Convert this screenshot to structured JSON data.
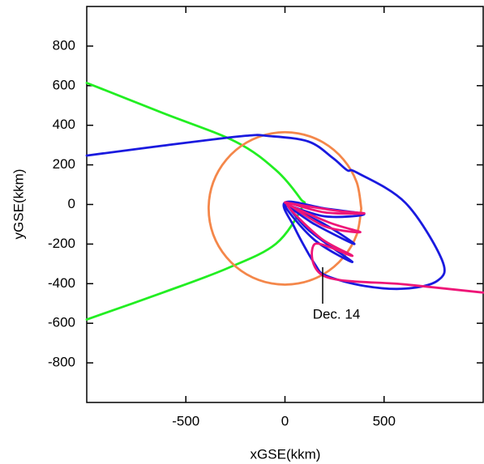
{
  "chart_data": {
    "type": "line",
    "x_label": "xGSE(kkm)",
    "y_label": "yGSE(kkm)",
    "xlim": [
      -1000,
      1000
    ],
    "ylim": [
      -1000,
      1000
    ],
    "xticks": [
      -500,
      0,
      500
    ],
    "yticks": [
      -800,
      -600,
      -400,
      -200,
      0,
      200,
      400,
      600,
      800
    ],
    "series": [
      {
        "color": "#22ee22",
        "x": [
          -1000,
          -616,
          -249,
          -45,
          78,
          88,
          -45,
          -290,
          -616,
          -1000
        ],
        "y": [
          614,
          462,
          317,
          173,
          29,
          -12,
          -198,
          -322,
          -445,
          -581
        ]
      },
      {
        "color": "#f4874a",
        "x": [
          385,
          362,
          295,
          193,
          67,
          -67,
          -193,
          -295,
          -362,
          -385,
          -362,
          -295,
          -193,
          -67,
          67,
          193,
          295,
          362,
          385
        ],
        "y": [
          -20,
          112,
          227,
          313,
          359,
          359,
          313,
          227,
          112,
          -20,
          -152,
          -267,
          -353,
          -399,
          -399,
          -353,
          -267,
          -152,
          -20
        ]
      },
      {
        "color": "#1a1adf",
        "x": [
          -1000,
          -616,
          -208,
          -86,
          118,
          241,
          314,
          363,
          608,
          792,
          771,
          608,
          404,
          210,
          150,
          50,
          0,
          200,
          400,
          200,
          0,
          200,
          350,
          150,
          0,
          150,
          340,
          120,
          0
        ],
        "y": [
          247,
          297,
          346,
          346,
          318,
          235,
          173,
          161,
          8,
          -280,
          -384,
          -425,
          -412,
          -360,
          -300,
          -120,
          10,
          -20,
          -50,
          -60,
          0,
          -100,
          -200,
          -100,
          -5,
          -180,
          -290,
          -130,
          10
        ]
      },
      {
        "color": "#ee1577",
        "x": [
          0,
          250,
          400,
          200,
          0,
          220,
          380,
          200,
          10,
          180,
          340,
          150,
          200,
          608,
          1000
        ],
        "y": [
          10,
          -30,
          -45,
          -40,
          10,
          -90,
          -140,
          -110,
          0,
          -170,
          -260,
          -200,
          -363,
          -404,
          -445
        ]
      }
    ],
    "annotations": [
      {
        "text": "Dec. 14"
      }
    ]
  }
}
